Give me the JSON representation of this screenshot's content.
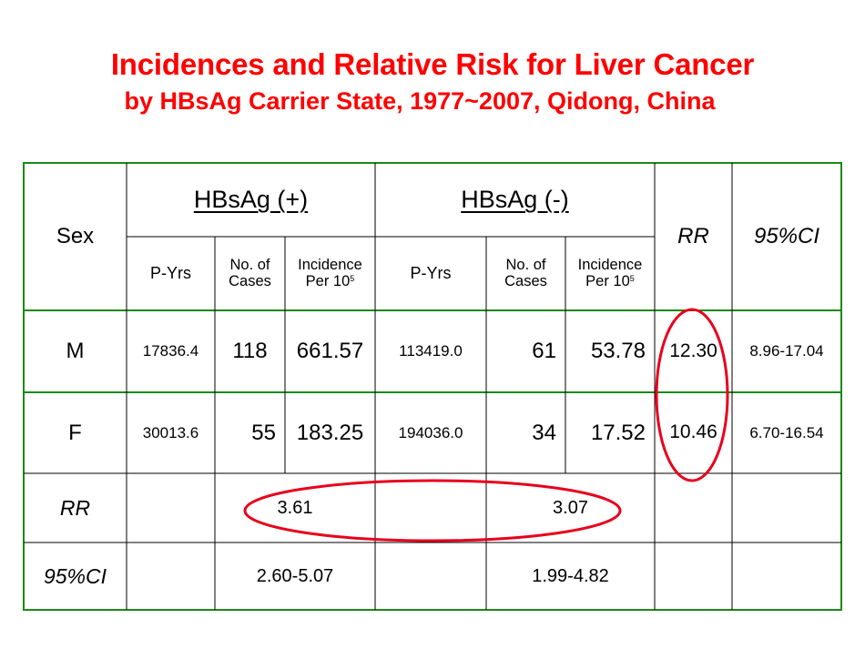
{
  "title_line1": "Incidences and Relative Risk for Liver Cancer",
  "title_line2": "by HBsAg Carrier State, 1977~2007, Qidong, China",
  "colors": {
    "title": "#ff0000",
    "border": "#1a8a1a",
    "annotation": "#e8001c"
  },
  "header": {
    "sex": "Sex",
    "group_pos": "HBsAg (+)",
    "group_neg": "HBsAg (-)",
    "rr": "RR",
    "ci": "95%CI",
    "pyrs": "P-Yrs",
    "cases_l1": "No. of",
    "cases_l2": "Cases",
    "inc_l1": "Incidence",
    "inc_l2": "Per 10",
    "inc_sup": "5"
  },
  "rows": [
    {
      "sex": "M",
      "pos_pyrs": "17836.4",
      "pos_cases": "118",
      "pos_inc": "661.57",
      "neg_pyrs": "113419.0",
      "neg_cases": "61",
      "neg_inc": "53.78",
      "rr": "12.30",
      "ci": "8.96-17.04"
    },
    {
      "sex": "F",
      "pos_pyrs": "30013.6",
      "pos_cases": "55",
      "pos_inc": "183.25",
      "neg_pyrs": "194036.0",
      "neg_cases": "34",
      "neg_inc": "17.52",
      "rr": "10.46",
      "ci": "6.70-16.54"
    }
  ],
  "rr_row": {
    "label": "RR",
    "pos": "3.61",
    "neg": "3.07"
  },
  "ci_row": {
    "label": "95%CI",
    "pos": "2.60-5.07",
    "neg": "1.99-4.82"
  }
}
